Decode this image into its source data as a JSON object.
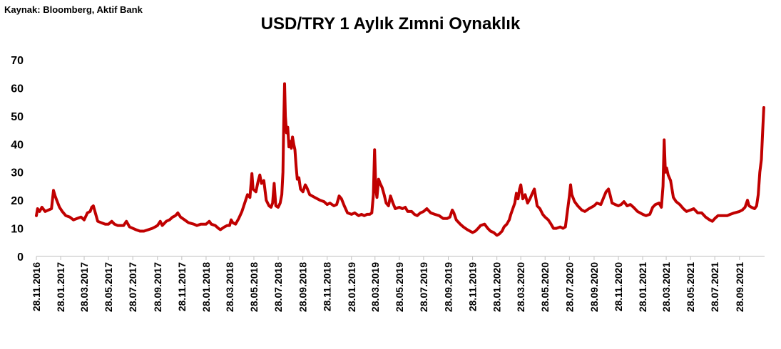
{
  "source": "Kaynak: Bloomberg, Aktif Bank",
  "chart_data": {
    "type": "line",
    "title": "USD/TRY  1 Aylık Zımni Oynaklık",
    "xlabel": "",
    "ylabel": "",
    "ylim": [
      0,
      70
    ],
    "yticks": [
      0,
      10,
      20,
      30,
      40,
      50,
      60,
      70
    ],
    "grid": false,
    "legend": "none",
    "line_color": "#C00000",
    "x_range": [
      "2016-11-28",
      "2021-11-30"
    ],
    "x_tick_labels": [
      "28.11.2016",
      "28.01.2017",
      "28.03.2017",
      "28.05.2017",
      "28.07.2017",
      "28.09.2017",
      "28.11.2017",
      "28.01.2018",
      "28.03.2018",
      "28.05.2018",
      "28.07.2018",
      "28.09.2018",
      "28.11.2018",
      "28.01.2019",
      "28.03.2019",
      "28.05.2019",
      "28.07.2019",
      "28.09.2019",
      "28.11.2019",
      "28.01.2020",
      "28.03.2020",
      "28.05.2020",
      "28.07.2020",
      "28.09.2020",
      "28.11.2020",
      "28.01.2021",
      "28.03.2021",
      "28.05.2021",
      "28.07.2021",
      "28.09.2021"
    ],
    "series": [
      {
        "points": [
          [
            "2016-11-28",
            14.5
          ],
          [
            "2016-12-01",
            17.0
          ],
          [
            "2016-12-06",
            16.0
          ],
          [
            "2016-12-12",
            17.5
          ],
          [
            "2016-12-20",
            16.0
          ],
          [
            "2016-12-28",
            16.5
          ],
          [
            "2017-01-05",
            17.0
          ],
          [
            "2017-01-10",
            23.5
          ],
          [
            "2017-01-14",
            21.5
          ],
          [
            "2017-01-18",
            20.0
          ],
          [
            "2017-01-25",
            17.5
          ],
          [
            "2017-02-01",
            16.0
          ],
          [
            "2017-02-10",
            14.5
          ],
          [
            "2017-02-20",
            14.0
          ],
          [
            "2017-03-01",
            13.0
          ],
          [
            "2017-03-10",
            13.5
          ],
          [
            "2017-03-20",
            14.0
          ],
          [
            "2017-03-28",
            13.0
          ],
          [
            "2017-04-05",
            15.5
          ],
          [
            "2017-04-12",
            16.0
          ],
          [
            "2017-04-16",
            17.5
          ],
          [
            "2017-04-20",
            18.0
          ],
          [
            "2017-04-25",
            15.5
          ],
          [
            "2017-05-01",
            12.5
          ],
          [
            "2017-05-10",
            12.0
          ],
          [
            "2017-05-20",
            11.5
          ],
          [
            "2017-05-28",
            11.5
          ],
          [
            "2017-06-05",
            12.5
          ],
          [
            "2017-06-12",
            11.5
          ],
          [
            "2017-06-20",
            11.0
          ],
          [
            "2017-06-28",
            11.0
          ],
          [
            "2017-07-05",
            11.0
          ],
          [
            "2017-07-12",
            12.5
          ],
          [
            "2017-07-20",
            10.5
          ],
          [
            "2017-07-28",
            10.0
          ],
          [
            "2017-08-05",
            9.5
          ],
          [
            "2017-08-15",
            9.0
          ],
          [
            "2017-08-25",
            9.0
          ],
          [
            "2017-09-05",
            9.5
          ],
          [
            "2017-09-15",
            10.0
          ],
          [
            "2017-09-22",
            10.5
          ],
          [
            "2017-09-28",
            11.0
          ],
          [
            "2017-10-05",
            12.5
          ],
          [
            "2017-10-10",
            11.0
          ],
          [
            "2017-10-20",
            12.5
          ],
          [
            "2017-10-28",
            13.0
          ],
          [
            "2017-11-05",
            14.0
          ],
          [
            "2017-11-12",
            14.5
          ],
          [
            "2017-11-18",
            15.5
          ],
          [
            "2017-11-25",
            14.0
          ],
          [
            "2017-12-05",
            13.0
          ],
          [
            "2017-12-15",
            12.0
          ],
          [
            "2017-12-28",
            11.5
          ],
          [
            "2018-01-05",
            11.0
          ],
          [
            "2018-01-15",
            11.5
          ],
          [
            "2018-01-28",
            11.5
          ],
          [
            "2018-02-05",
            12.5
          ],
          [
            "2018-02-10",
            11.5
          ],
          [
            "2018-02-20",
            11.0
          ],
          [
            "2018-02-28",
            10.0
          ],
          [
            "2018-03-05",
            9.5
          ],
          [
            "2018-03-15",
            10.5
          ],
          [
            "2018-03-22",
            11.0
          ],
          [
            "2018-03-28",
            11.0
          ],
          [
            "2018-04-01",
            13.0
          ],
          [
            "2018-04-05",
            12.0
          ],
          [
            "2018-04-12",
            11.5
          ],
          [
            "2018-04-20",
            13.5
          ],
          [
            "2018-04-28",
            16.0
          ],
          [
            "2018-05-05",
            19.0
          ],
          [
            "2018-05-12",
            22.0
          ],
          [
            "2018-05-18",
            21.0
          ],
          [
            "2018-05-23",
            29.5
          ],
          [
            "2018-05-26",
            24.0
          ],
          [
            "2018-06-02",
            23.0
          ],
          [
            "2018-06-08",
            27.0
          ],
          [
            "2018-06-12",
            29.0
          ],
          [
            "2018-06-16",
            26.0
          ],
          [
            "2018-06-22",
            27.0
          ],
          [
            "2018-06-28",
            20.0
          ],
          [
            "2018-07-05",
            18.0
          ],
          [
            "2018-07-10",
            17.5
          ],
          [
            "2018-07-14",
            19.0
          ],
          [
            "2018-07-18",
            26.0
          ],
          [
            "2018-07-22",
            18.0
          ],
          [
            "2018-07-28",
            17.5
          ],
          [
            "2018-08-02",
            19.0
          ],
          [
            "2018-08-06",
            22.0
          ],
          [
            "2018-08-09",
            30.0
          ],
          [
            "2018-08-11",
            47.0
          ],
          [
            "2018-08-13",
            61.5
          ],
          [
            "2018-08-15",
            50.0
          ],
          [
            "2018-08-18",
            44.0
          ],
          [
            "2018-08-21",
            46.0
          ],
          [
            "2018-08-24",
            39.0
          ],
          [
            "2018-08-27",
            41.0
          ],
          [
            "2018-08-30",
            38.5
          ],
          [
            "2018-09-02",
            42.5
          ],
          [
            "2018-09-05",
            40.0
          ],
          [
            "2018-09-08",
            38.0
          ],
          [
            "2018-09-11",
            32.0
          ],
          [
            "2018-09-14",
            27.5
          ],
          [
            "2018-09-18",
            28.0
          ],
          [
            "2018-09-22",
            24.0
          ],
          [
            "2018-09-28",
            23.0
          ],
          [
            "2018-10-04",
            25.5
          ],
          [
            "2018-10-08",
            24.5
          ],
          [
            "2018-10-15",
            22.0
          ],
          [
            "2018-10-28",
            21.0
          ],
          [
            "2018-11-10",
            20.0
          ],
          [
            "2018-11-20",
            19.5
          ],
          [
            "2018-11-28",
            18.5
          ],
          [
            "2018-12-05",
            19.0
          ],
          [
            "2018-12-15",
            18.0
          ],
          [
            "2018-12-22",
            18.5
          ],
          [
            "2018-12-28",
            21.5
          ],
          [
            "2019-01-03",
            20.5
          ],
          [
            "2019-01-10",
            18.0
          ],
          [
            "2019-01-18",
            15.5
          ],
          [
            "2019-01-28",
            15.0
          ],
          [
            "2019-02-05",
            15.5
          ],
          [
            "2019-02-15",
            14.5
          ],
          [
            "2019-02-22",
            15.0
          ],
          [
            "2019-03-01",
            14.5
          ],
          [
            "2019-03-08",
            15.0
          ],
          [
            "2019-03-15",
            15.0
          ],
          [
            "2019-03-20",
            15.5
          ],
          [
            "2019-03-24",
            22.0
          ],
          [
            "2019-03-27",
            38.0
          ],
          [
            "2019-03-30",
            24.0
          ],
          [
            "2019-04-02",
            21.0
          ],
          [
            "2019-04-06",
            27.5
          ],
          [
            "2019-04-10",
            26.0
          ],
          [
            "2019-04-15",
            24.5
          ],
          [
            "2019-04-20",
            22.0
          ],
          [
            "2019-04-25",
            19.0
          ],
          [
            "2019-05-01",
            18.0
          ],
          [
            "2019-05-06",
            21.5
          ],
          [
            "2019-05-12",
            19.0
          ],
          [
            "2019-05-18",
            17.0
          ],
          [
            "2019-05-28",
            17.5
          ],
          [
            "2019-06-05",
            17.0
          ],
          [
            "2019-06-12",
            17.5
          ],
          [
            "2019-06-18",
            16.0
          ],
          [
            "2019-06-28",
            16.0
          ],
          [
            "2019-07-05",
            15.0
          ],
          [
            "2019-07-12",
            14.5
          ],
          [
            "2019-07-20",
            15.5
          ],
          [
            "2019-07-28",
            16.0
          ],
          [
            "2019-08-05",
            17.0
          ],
          [
            "2019-08-15",
            15.5
          ],
          [
            "2019-08-25",
            15.0
          ],
          [
            "2019-09-05",
            14.5
          ],
          [
            "2019-09-15",
            13.5
          ],
          [
            "2019-09-25",
            13.5
          ],
          [
            "2019-10-02",
            14.0
          ],
          [
            "2019-10-08",
            16.5
          ],
          [
            "2019-10-12",
            15.5
          ],
          [
            "2019-10-18",
            13.0
          ],
          [
            "2019-10-28",
            11.5
          ],
          [
            "2019-11-05",
            10.5
          ],
          [
            "2019-11-15",
            9.5
          ],
          [
            "2019-11-28",
            8.5
          ],
          [
            "2019-12-05",
            9.0
          ],
          [
            "2019-12-12",
            10.0
          ],
          [
            "2019-12-18",
            11.0
          ],
          [
            "2019-12-28",
            11.5
          ],
          [
            "2020-01-05",
            10.0
          ],
          [
            "2020-01-12",
            9.0
          ],
          [
            "2020-01-20",
            8.5
          ],
          [
            "2020-01-28",
            7.5
          ],
          [
            "2020-02-03",
            8.0
          ],
          [
            "2020-02-10",
            9.0
          ],
          [
            "2020-02-15",
            10.5
          ],
          [
            "2020-02-22",
            11.5
          ],
          [
            "2020-02-28",
            13.0
          ],
          [
            "2020-03-03",
            15.0
          ],
          [
            "2020-03-08",
            17.0
          ],
          [
            "2020-03-13",
            19.0
          ],
          [
            "2020-03-17",
            22.5
          ],
          [
            "2020-03-21",
            20.5
          ],
          [
            "2020-03-25",
            24.0
          ],
          [
            "2020-03-28",
            25.5
          ],
          [
            "2020-04-02",
            20.5
          ],
          [
            "2020-04-08",
            22.0
          ],
          [
            "2020-04-14",
            19.0
          ],
          [
            "2020-04-20",
            20.5
          ],
          [
            "2020-04-26",
            22.5
          ],
          [
            "2020-05-01",
            24.0
          ],
          [
            "2020-05-08",
            18.0
          ],
          [
            "2020-05-15",
            17.0
          ],
          [
            "2020-05-22",
            15.0
          ],
          [
            "2020-05-28",
            14.0
          ],
          [
            "2020-06-05",
            13.0
          ],
          [
            "2020-06-12",
            11.5
          ],
          [
            "2020-06-18",
            10.0
          ],
          [
            "2020-06-25",
            10.0
          ],
          [
            "2020-07-05",
            10.5
          ],
          [
            "2020-07-12",
            10.0
          ],
          [
            "2020-07-18",
            10.5
          ],
          [
            "2020-07-23",
            16.0
          ],
          [
            "2020-07-28",
            21.5
          ],
          [
            "2020-07-31",
            25.5
          ],
          [
            "2020-08-03",
            22.0
          ],
          [
            "2020-08-10",
            19.5
          ],
          [
            "2020-08-18",
            18.0
          ],
          [
            "2020-08-28",
            16.5
          ],
          [
            "2020-09-05",
            16.0
          ],
          [
            "2020-09-15",
            17.0
          ],
          [
            "2020-09-28",
            18.0
          ],
          [
            "2020-10-05",
            19.0
          ],
          [
            "2020-10-15",
            18.5
          ],
          [
            "2020-10-22",
            21.0
          ],
          [
            "2020-10-28",
            23.0
          ],
          [
            "2020-11-03",
            24.0
          ],
          [
            "2020-11-07",
            22.0
          ],
          [
            "2020-11-12",
            19.0
          ],
          [
            "2020-11-20",
            18.5
          ],
          [
            "2020-11-28",
            18.0
          ],
          [
            "2020-12-05",
            18.5
          ],
          [
            "2020-12-12",
            19.5
          ],
          [
            "2020-12-20",
            18.0
          ],
          [
            "2020-12-28",
            18.5
          ],
          [
            "2021-01-05",
            17.5
          ],
          [
            "2021-01-15",
            16.0
          ],
          [
            "2021-01-28",
            15.0
          ],
          [
            "2021-02-05",
            14.5
          ],
          [
            "2021-02-15",
            15.0
          ],
          [
            "2021-02-22",
            17.5
          ],
          [
            "2021-03-01",
            18.5
          ],
          [
            "2021-03-10",
            19.0
          ],
          [
            "2021-03-16",
            17.5
          ],
          [
            "2021-03-20",
            25.0
          ],
          [
            "2021-03-23",
            41.5
          ],
          [
            "2021-03-26",
            30.0
          ],
          [
            "2021-03-29",
            31.5
          ],
          [
            "2021-04-02",
            29.0
          ],
          [
            "2021-04-08",
            27.0
          ],
          [
            "2021-04-15",
            21.0
          ],
          [
            "2021-04-22",
            19.5
          ],
          [
            "2021-05-01",
            18.5
          ],
          [
            "2021-05-10",
            17.0
          ],
          [
            "2021-05-18",
            16.0
          ],
          [
            "2021-05-28",
            16.5
          ],
          [
            "2021-06-05",
            17.0
          ],
          [
            "2021-06-15",
            15.5
          ],
          [
            "2021-06-25",
            15.5
          ],
          [
            "2021-07-05",
            14.0
          ],
          [
            "2021-07-15",
            13.0
          ],
          [
            "2021-07-22",
            12.5
          ],
          [
            "2021-07-28",
            13.5
          ],
          [
            "2021-08-05",
            14.5
          ],
          [
            "2021-08-15",
            14.5
          ],
          [
            "2021-08-28",
            14.5
          ],
          [
            "2021-09-05",
            15.0
          ],
          [
            "2021-09-15",
            15.5
          ],
          [
            "2021-09-28",
            16.0
          ],
          [
            "2021-10-05",
            16.5
          ],
          [
            "2021-10-12",
            17.5
          ],
          [
            "2021-10-18",
            20.0
          ],
          [
            "2021-10-22",
            18.0
          ],
          [
            "2021-10-28",
            17.5
          ],
          [
            "2021-11-05",
            17.0
          ],
          [
            "2021-11-10",
            18.0
          ],
          [
            "2021-11-14",
            22.0
          ],
          [
            "2021-11-18",
            30.0
          ],
          [
            "2021-11-22",
            34.5
          ],
          [
            "2021-11-25",
            44.0
          ],
          [
            "2021-11-28",
            53.0
          ]
        ]
      }
    ]
  }
}
